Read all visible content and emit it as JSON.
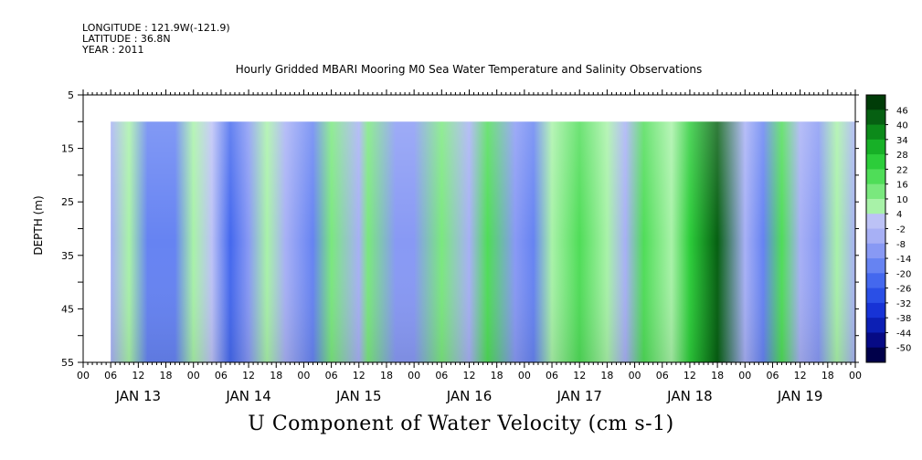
{
  "header": {
    "longitude": "LONGITUDE : 121.9W(-121.9)",
    "latitude": "LATITUDE : 36.8N",
    "year": "YEAR : 2011",
    "title": "Hourly Gridded MBARI Mooring M0 Sea Water Temperature and Salinity Observations"
  },
  "footer": {
    "title": "U Component of Water Velocity (cm s-1)"
  },
  "chart_data": {
    "type": "heatmap",
    "title": "Hourly Gridded MBARI Mooring M0 Sea Water Temperature and Salinity Observations",
    "xlabel": "",
    "ylabel": "DEPTH (m)",
    "variable": "U Component of Water Velocity (cm s-1)",
    "x_hour_ticks": [
      "00",
      "06",
      "12",
      "18",
      "00",
      "06",
      "12",
      "18",
      "00",
      "06",
      "12",
      "18",
      "00",
      "06",
      "12",
      "18",
      "00",
      "06",
      "12",
      "18",
      "00",
      "06",
      "12",
      "18",
      "00",
      "06",
      "12",
      "18",
      "00"
    ],
    "x_day_labels": [
      "JAN 13",
      "JAN 14",
      "JAN 15",
      "JAN 16",
      "JAN 17",
      "JAN 18",
      "JAN 19"
    ],
    "xlim_hours": [
      0,
      168
    ],
    "data_start_hour": 6,
    "ylim": [
      55,
      5
    ],
    "y_ticks": [
      5,
      15,
      25,
      35,
      45,
      55
    ],
    "data_depth_range": [
      10,
      55
    ],
    "colorbar": {
      "levels": [
        -50,
        -44,
        -38,
        -32,
        -26,
        -20,
        -14,
        -8,
        -2,
        4,
        10,
        16,
        22,
        28,
        34,
        40,
        46
      ],
      "labels": [
        "46",
        "40",
        "34",
        "28",
        "22",
        "16",
        "10",
        "4",
        "-2",
        "-8",
        "-14",
        "-20",
        "-26",
        "-32",
        "-38",
        "-44",
        "-50"
      ],
      "colors": [
        "#00004a",
        "#060a85",
        "#0c1fb4",
        "#1733d6",
        "#2a4fe6",
        "#4468ee",
        "#6683f2",
        "#8899f4",
        "#a7b0f5",
        "#bcc2f6",
        "#a8f2a8",
        "#7ae87e",
        "#4fdd58",
        "#2ccd3a",
        "#17b027",
        "#0c8a1a",
        "#066012",
        "#003c08"
      ]
    },
    "velocity_by_hour": [
      {
        "hour": 6,
        "u": -8
      },
      {
        "hour": 10,
        "u": 6
      },
      {
        "hour": 14,
        "u": -18
      },
      {
        "hour": 20,
        "u": -20
      },
      {
        "hour": 24,
        "u": 4
      },
      {
        "hour": 28,
        "u": 2
      },
      {
        "hour": 32,
        "u": -22
      },
      {
        "hour": 36,
        "u": -14
      },
      {
        "hour": 40,
        "u": 8
      },
      {
        "hour": 44,
        "u": -8
      },
      {
        "hour": 50,
        "u": -16
      },
      {
        "hour": 54,
        "u": 10
      },
      {
        "hour": 60,
        "u": -4
      },
      {
        "hour": 62,
        "u": 12
      },
      {
        "hour": 68,
        "u": -12
      },
      {
        "hour": 72,
        "u": -10
      },
      {
        "hour": 78,
        "u": 14
      },
      {
        "hour": 84,
        "u": -6
      },
      {
        "hour": 88,
        "u": 16
      },
      {
        "hour": 94,
        "u": -12
      },
      {
        "hour": 98,
        "u": -18
      },
      {
        "hour": 102,
        "u": 6
      },
      {
        "hour": 108,
        "u": 16
      },
      {
        "hour": 114,
        "u": 6
      },
      {
        "hour": 118,
        "u": -6
      },
      {
        "hour": 122,
        "u": 16
      },
      {
        "hour": 128,
        "u": 6
      },
      {
        "hour": 132,
        "u": 24
      },
      {
        "hour": 138,
        "u": 44
      },
      {
        "hour": 144,
        "u": -8
      },
      {
        "hour": 148,
        "u": -20
      },
      {
        "hour": 152,
        "u": 18
      },
      {
        "hour": 156,
        "u": -4
      },
      {
        "hour": 160,
        "u": -10
      },
      {
        "hour": 164,
        "u": 8
      },
      {
        "hour": 168,
        "u": -6
      }
    ]
  }
}
